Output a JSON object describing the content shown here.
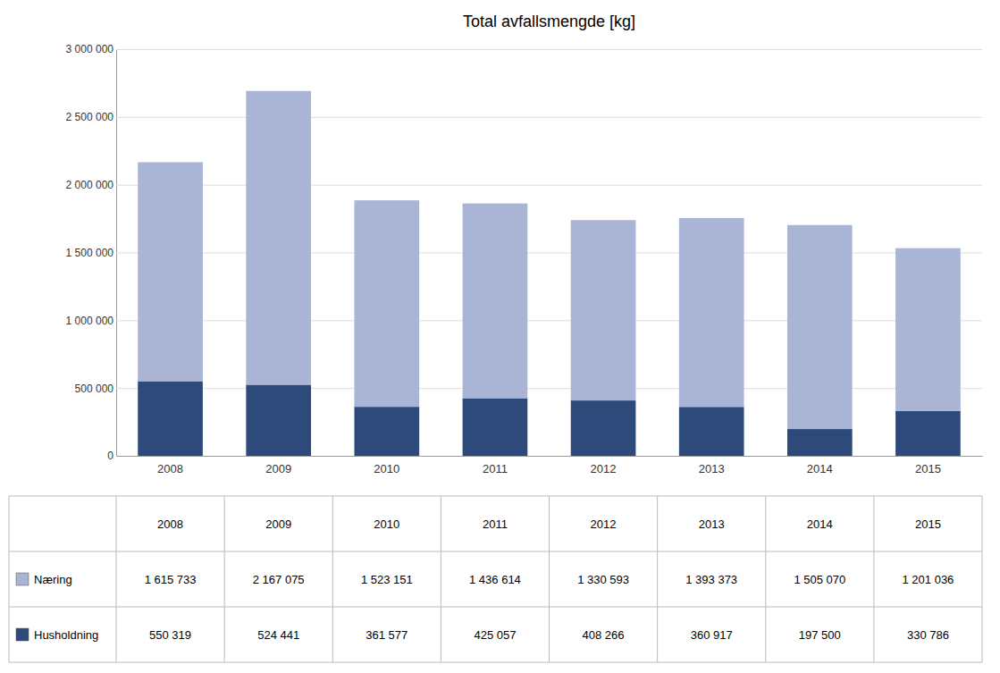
{
  "chart_data": {
    "type": "bar",
    "title": "Total avfallsmengde [kg]",
    "categories": [
      "2008",
      "2009",
      "2010",
      "2011",
      "2012",
      "2013",
      "2014",
      "2015"
    ],
    "series": [
      {
        "name": "Husholdning",
        "color": "#2e4a7a",
        "values": [
          550319,
          524441,
          361577,
          425057,
          408266,
          360917,
          197500,
          330786
        ],
        "value_labels": [
          "550 319",
          "524 441",
          "361 577",
          "425 057",
          "408 266",
          "360 917",
          "197 500",
          "330 786"
        ]
      },
      {
        "name": "Næring",
        "color": "#aab4d4",
        "values": [
          1615733,
          2167075,
          1523151,
          1436614,
          1330593,
          1393373,
          1505070,
          1201036
        ],
        "value_labels": [
          "1 615 733",
          "2 167 075",
          "1 523 151",
          "1 436 614",
          "1 330 593",
          "1 393 373",
          "1 505 070",
          "1 201 036"
        ]
      }
    ],
    "stacked": true,
    "ylim": [
      0,
      3000000
    ],
    "yticks": [
      0,
      {
        "value": 500000,
        "label": "500 000"
      },
      {
        "value": 1000000,
        "label": "1 000 000"
      },
      {
        "value": 1500000,
        "label": "1 500 000"
      },
      {
        "value": 2000000,
        "label": "2 000 000"
      },
      {
        "value": 2500000,
        "label": "2 500 000"
      },
      {
        "value": 3000000,
        "label": "3 000 000"
      }
    ],
    "grid": true
  }
}
